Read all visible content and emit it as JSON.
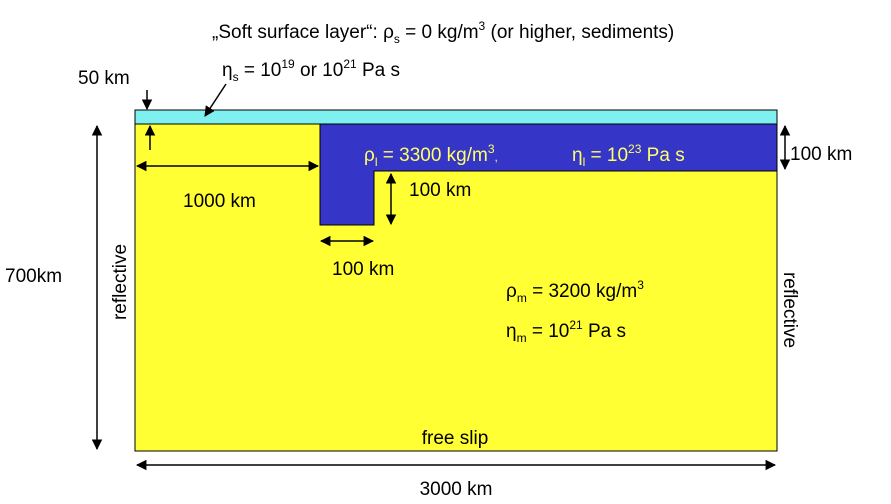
{
  "colors": {
    "mantle": "#ffff33",
    "lithosphere": "#3535c8",
    "soft_layer": "#7ff0f0",
    "outline": "#000000",
    "lith_text": "#ffff66"
  },
  "title": {
    "line1_prefix": "„Soft surface layer“: ",
    "rho": "ρ",
    "rho_sub": "s",
    "line1_mid": " = 0 kg/m",
    "line1_sup": "3",
    "line1_tail": " (or higher, sediments)",
    "eta": "η",
    "eta_sub": "s",
    "line2_a": " = 10",
    "line2_sup_a": "19",
    "line2_b": " or 10",
    "line2_sup_b": "21",
    "line2_c": " Pa s"
  },
  "dimensions": {
    "soft_layer_thickness": "50 km",
    "lith_thickness": "100 km",
    "lith_offset": "1000 km",
    "slab_depth": "100 km",
    "slab_width": "100 km",
    "depth": "700km",
    "width": "3000 km"
  },
  "lithosphere": {
    "rho": "ρ",
    "rho_sub": "l",
    "rho_text": " = 3300 kg/m",
    "rho_sup": "3",
    "rho_tail": ",",
    "eta": "η",
    "eta_sub": "l",
    "eta_text": " = 10",
    "eta_sup": "23",
    "eta_tail": " Pa s"
  },
  "mantle": {
    "rho": "ρ",
    "rho_sub": "m",
    "rho_text": " = 3200 kg/m",
    "rho_sup": "3",
    "eta": "η",
    "eta_sub": "m",
    "eta_text": " = 10",
    "eta_sup": "21",
    "eta_tail": " Pa s"
  },
  "boundaries": {
    "left": "reflective",
    "right": "reflective",
    "bottom": "free slip"
  }
}
